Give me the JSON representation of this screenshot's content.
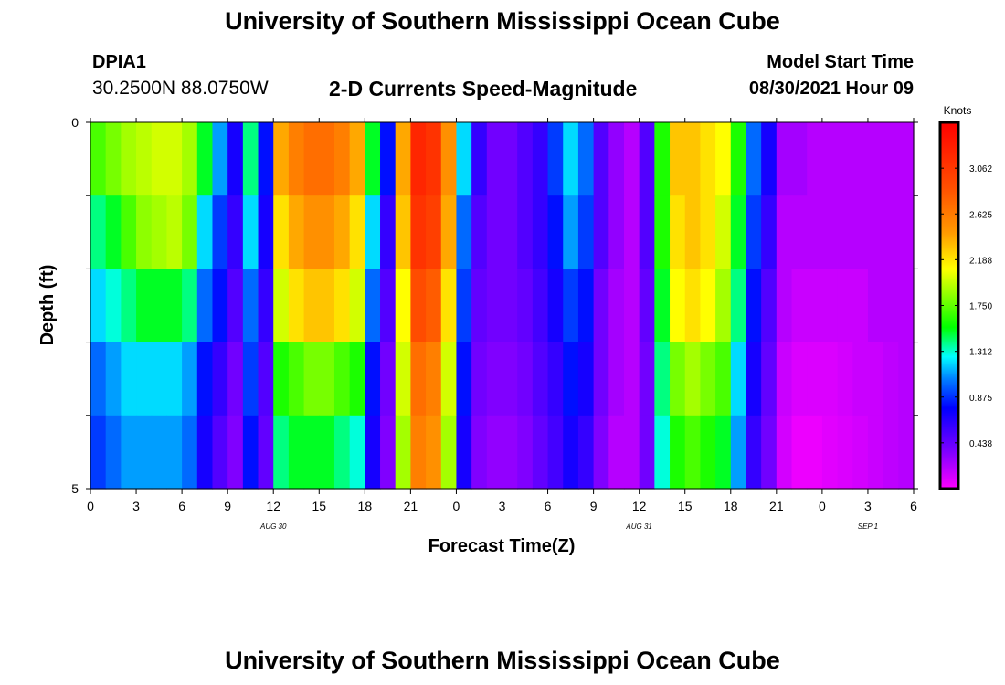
{
  "header": {
    "title": "University of Southern Mississippi Ocean Cube",
    "station": "DPIA1",
    "coordinates": "30.2500N  88.0750W",
    "model_start_label": "Model Start Time",
    "model_start_value": "08/30/2021 Hour 09"
  },
  "footer": {
    "title": "University of Southern Mississippi Ocean Cube"
  },
  "chart_data": {
    "type": "heatmap",
    "title": "2-D Currents Speed-Magnitude",
    "xlabel": "Forecast Time(Z)",
    "ylabel": "Depth (ft)",
    "x_tick_labels": [
      "0",
      "3",
      "6",
      "9",
      "12",
      "15",
      "18",
      "21",
      "0",
      "3",
      "6",
      "9",
      "12",
      "15",
      "18",
      "21",
      "0",
      "3",
      "6"
    ],
    "x_hours_range": [
      0,
      54
    ],
    "date_labels": [
      {
        "text": "AUG 30",
        "hour": 12
      },
      {
        "text": "AUG 31",
        "hour": 36
      },
      {
        "text": "SEP 1",
        "hour": 51
      }
    ],
    "y_tick_labels": [
      "0",
      "5"
    ],
    "ylim": [
      0,
      5
    ],
    "colorbar": {
      "label": "Knots",
      "ticks": [
        "3.062",
        "2.625",
        "2.188",
        "1.750",
        "1.312",
        "0.875",
        "0.438"
      ],
      "range": [
        0,
        3.5
      ]
    },
    "depth_bands": 5,
    "time_step_hours": 1,
    "values": [
      [
        1.7,
        1.8,
        1.9,
        1.95,
        2.0,
        2.0,
        1.9,
        1.5,
        1.1,
        0.7,
        1.4,
        0.8,
        2.4,
        2.6,
        2.7,
        2.7,
        2.6,
        2.4,
        1.5,
        0.8,
        2.4,
        3.2,
        3.1,
        2.5,
        1.2,
        0.6,
        0.4,
        0.4,
        0.5,
        0.6,
        0.9,
        1.2,
        1.0,
        0.5,
        0.3,
        0.2,
        0.5,
        1.6,
        2.3,
        2.3,
        2.2,
        2.1,
        1.6,
        1.0,
        0.7,
        0.25,
        0.25,
        0.2,
        0.2,
        0.2,
        0.2,
        0.2,
        0.2,
        0.2
      ],
      [
        1.4,
        1.5,
        1.7,
        1.85,
        1.9,
        1.95,
        1.8,
        1.2,
        0.9,
        0.6,
        1.2,
        0.7,
        2.2,
        2.4,
        2.5,
        2.5,
        2.4,
        2.2,
        1.2,
        0.6,
        2.3,
        3.1,
        3.0,
        2.4,
        1.0,
        0.5,
        0.4,
        0.4,
        0.5,
        0.6,
        0.8,
        1.1,
        0.9,
        0.5,
        0.3,
        0.2,
        0.5,
        1.6,
        2.2,
        2.3,
        2.2,
        2.0,
        1.5,
        0.9,
        0.6,
        0.2,
        0.2,
        0.2,
        0.2,
        0.2,
        0.2,
        0.2,
        0.2,
        0.2
      ],
      [
        1.2,
        1.3,
        1.4,
        1.5,
        1.5,
        1.5,
        1.4,
        1.0,
        0.8,
        0.5,
        1.0,
        0.6,
        2.0,
        2.2,
        2.3,
        2.3,
        2.2,
        2.0,
        1.0,
        0.5,
        2.1,
        2.9,
        2.8,
        2.2,
        0.9,
        0.45,
        0.4,
        0.4,
        0.45,
        0.55,
        0.7,
        0.9,
        0.8,
        0.4,
        0.25,
        0.2,
        0.45,
        1.5,
        2.1,
        2.2,
        2.1,
        1.9,
        1.4,
        0.8,
        0.5,
        0.2,
        0.15,
        0.15,
        0.15,
        0.15,
        0.15,
        0.2,
        0.2,
        0.2
      ],
      [
        1.0,
        1.1,
        1.2,
        1.2,
        1.2,
        1.2,
        1.1,
        0.8,
        0.6,
        0.4,
        0.9,
        0.5,
        1.6,
        1.7,
        1.8,
        1.8,
        1.7,
        1.6,
        0.8,
        0.4,
        2.0,
        2.7,
        2.6,
        2.0,
        0.8,
        0.4,
        0.35,
        0.35,
        0.4,
        0.5,
        0.6,
        0.8,
        0.7,
        0.4,
        0.25,
        0.2,
        0.4,
        1.4,
        1.8,
        1.9,
        1.8,
        1.7,
        1.2,
        0.7,
        0.45,
        0.15,
        0.1,
        0.1,
        0.1,
        0.12,
        0.15,
        0.15,
        0.18,
        0.2
      ],
      [
        0.9,
        1.0,
        1.1,
        1.1,
        1.1,
        1.1,
        1.0,
        0.7,
        0.5,
        0.35,
        0.8,
        0.45,
        1.4,
        1.5,
        1.5,
        1.5,
        1.4,
        1.3,
        0.7,
        0.35,
        1.9,
        2.6,
        2.5,
        1.9,
        0.7,
        0.35,
        0.3,
        0.3,
        0.35,
        0.45,
        0.55,
        0.7,
        0.6,
        0.35,
        0.2,
        0.2,
        0.4,
        1.3,
        1.6,
        1.7,
        1.6,
        1.5,
        1.1,
        0.6,
        0.4,
        0.12,
        0.05,
        0.05,
        0.08,
        0.1,
        0.12,
        0.15,
        0.18,
        0.2
      ]
    ]
  }
}
